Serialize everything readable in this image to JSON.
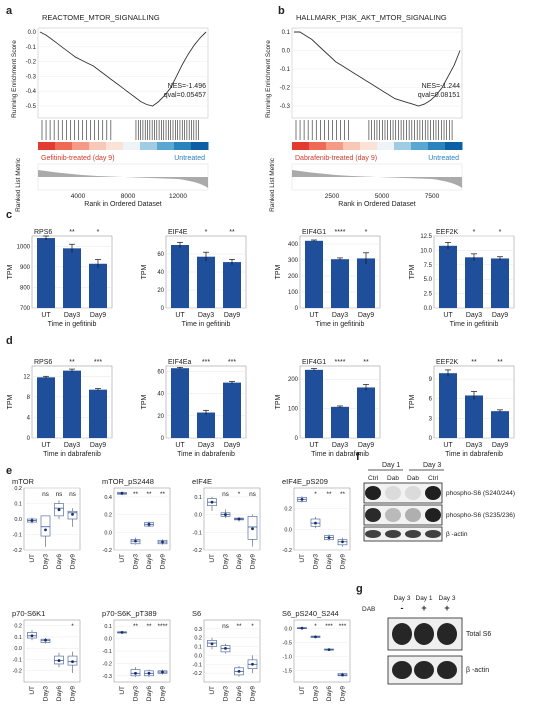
{
  "panel_letters": [
    "a",
    "b",
    "c",
    "d",
    "e",
    "f",
    "g"
  ],
  "gsea": [
    {
      "title": "REACTOME_MTOR_SIGNALLING",
      "ylabel": "Running Enrichment Score",
      "metric_label": "Ranked List Metric",
      "xlabel": "Rank in Ordered Dataset",
      "nes": "NES=-1.496",
      "qval": "qval=0.05457",
      "left_label": "Gefitinib-treated (day 9)",
      "right_label": "Untreated",
      "yticks": [
        "0.0",
        "-0.1",
        "-0.2",
        "-0.3",
        "-0.4",
        "-0.5"
      ],
      "xticks": [
        "4000",
        "8000",
        "12000"
      ],
      "curve": [
        0,
        -0.02,
        -0.05,
        -0.08,
        -0.11,
        -0.14,
        -0.17,
        -0.19,
        -0.21,
        -0.23,
        -0.26,
        -0.29,
        -0.32,
        -0.35,
        -0.38,
        -0.41,
        -0.44,
        -0.47,
        -0.49,
        -0.5,
        -0.47,
        -0.43,
        -0.38,
        -0.3,
        -0.22,
        -0.15,
        -0.09,
        -0.04,
        0.0
      ]
    },
    {
      "title": "HALLMARK_PI3K_AKT_MTOR_SIGNALING",
      "ylabel": "Running Enrichment Score",
      "metric_label": "Ranked List Metric",
      "xlabel": "Rank in Ordered Dataset",
      "nes": "NES=-1.244",
      "qval": "qval=0.08151",
      "left_label": "Dabrafenib-treated (day 9)",
      "right_label": "Untreated",
      "yticks": [
        "0.1",
        "0.0",
        "-0.1",
        "-0.2",
        "-0.3"
      ],
      "xticks": [
        "2500",
        "5000",
        "7500"
      ],
      "curve": [
        0.1,
        0.1,
        0.08,
        0.06,
        0.03,
        0.0,
        -0.03,
        -0.06,
        -0.08,
        -0.1,
        -0.12,
        -0.14,
        -0.16,
        -0.18,
        -0.2,
        -0.22,
        -0.24,
        -0.26,
        -0.27,
        -0.28,
        -0.29,
        -0.3,
        -0.29,
        -0.27,
        -0.24,
        -0.2,
        -0.14,
        -0.08,
        0.0
      ]
    }
  ],
  "chart_data": [
    {
      "type": "bar",
      "title": "RPS6",
      "ylabel": "TPM",
      "xlabel": "Time in gefitinib",
      "categories": [
        "UT",
        "Day3",
        "Day9"
      ],
      "values": [
        1040,
        990,
        915
      ],
      "errors": [
        10,
        20,
        20
      ],
      "sig": [
        "",
        "**",
        "*"
      ],
      "ylim": [
        700,
        1050
      ],
      "yticks": [
        "700",
        "800",
        "900",
        "1000"
      ]
    },
    {
      "type": "bar",
      "title": "EIF4E",
      "ylabel": "TPM",
      "xlabel": "Time in gefitinib",
      "categories": [
        "UT",
        "Day3",
        "Day9"
      ],
      "values": [
        70,
        57,
        51
      ],
      "errors": [
        3,
        5,
        3
      ],
      "sig": [
        "",
        "*",
        "**"
      ],
      "ylim": [
        0,
        80
      ],
      "yticks": [
        "0",
        "20",
        "40",
        "60"
      ]
    },
    {
      "type": "bar",
      "title": "EIF4G1",
      "ylabel": "TPM",
      "xlabel": "Time in gefitinib",
      "categories": [
        "UT",
        "Day3",
        "Day9"
      ],
      "values": [
        420,
        305,
        310
      ],
      "errors": [
        5,
        8,
        35
      ],
      "sig": [
        "",
        "****",
        "*"
      ],
      "ylim": [
        0,
        450
      ],
      "yticks": [
        "0",
        "100",
        "200",
        "300",
        "400"
      ]
    },
    {
      "type": "bar",
      "title": "EEF2K",
      "ylabel": "TPM",
      "xlabel": "Time in gefitinib",
      "categories": [
        "UT",
        "Day3",
        "Day9"
      ],
      "values": [
        10.8,
        8.8,
        8.6
      ],
      "errors": [
        0.6,
        0.6,
        0.3
      ],
      "sig": [
        "",
        "*",
        "*"
      ],
      "ylim": [
        0,
        12.5
      ],
      "yticks": [
        "0.0",
        "2.5",
        "5.0",
        "7.5",
        "10.0",
        "12.5"
      ]
    },
    {
      "type": "bar",
      "title": "RPS6",
      "ylabel": "TPM",
      "xlabel": "Time in dabrafenib",
      "categories": [
        "UT",
        "Day3",
        "Day9"
      ],
      "values": [
        11.8,
        13.1,
        9.4
      ],
      "errors": [
        0.2,
        0.3,
        0.2
      ],
      "sig": [
        "",
        "**",
        "***"
      ],
      "ylim": [
        0,
        14
      ],
      "yticks": [
        "0",
        "4",
        "8",
        "12"
      ]
    },
    {
      "type": "bar",
      "title": "EIF4Ea",
      "ylabel": "TPM",
      "xlabel": "Time in dabrafenib",
      "categories": [
        "UT",
        "Day3",
        "Day9"
      ],
      "values": [
        63,
        23,
        50
      ],
      "errors": [
        0.8,
        2,
        1
      ],
      "sig": [
        "",
        "***",
        "***"
      ],
      "ylim": [
        0,
        65
      ],
      "yticks": [
        "0",
        "20",
        "40",
        "60"
      ]
    },
    {
      "type": "bar",
      "title": "EIF4G1",
      "ylabel": "TPM",
      "xlabel": "Time in dabrafenib",
      "categories": [
        "UT",
        "Day3",
        "Day9"
      ],
      "values": [
        232,
        106,
        172
      ],
      "errors": [
        4,
        3,
        10
      ],
      "sig": [
        "",
        "****",
        "**"
      ],
      "ylim": [
        0,
        245
      ],
      "yticks": [
        "0",
        "100",
        "200"
      ]
    },
    {
      "type": "bar",
      "title": "EEF2K",
      "ylabel": "TPM",
      "xlabel": "Time in dabrafenib",
      "categories": [
        "UT",
        "Day3",
        "Day9"
      ],
      "values": [
        9.9,
        6.5,
        4.1
      ],
      "errors": [
        0.5,
        0.6,
        0.2
      ],
      "sig": [
        "",
        "**",
        "**"
      ],
      "ylim": [
        0,
        11
      ],
      "yticks": [
        "0",
        "3",
        "6",
        "9"
      ]
    },
    {
      "type": "box",
      "title": "mTOR",
      "categories": [
        "UT",
        "Day3",
        "Day6",
        "Day9"
      ],
      "ylim": [
        -0.2,
        0.2
      ],
      "yticks": [
        "-0.2",
        "-0.1",
        "0.0",
        "0.1",
        "0.2"
      ],
      "sig": [
        "",
        "ns",
        "ns",
        "ns"
      ],
      "boxes": [
        {
          "q1": -0.02,
          "med": -0.01,
          "q3": 0.0,
          "lo": -0.03,
          "hi": 0.01,
          "mean": -0.01
        },
        {
          "q1": -0.11,
          "med": -0.05,
          "q3": 0.02,
          "lo": -0.18,
          "hi": 0.02,
          "mean": -0.07
        },
        {
          "q1": 0.02,
          "med": 0.07,
          "q3": 0.1,
          "lo": 0.0,
          "hi": 0.12,
          "mean": 0.06
        },
        {
          "q1": 0.0,
          "med": 0.04,
          "q3": 0.05,
          "lo": -0.05,
          "hi": 0.07,
          "mean": 0.03
        }
      ]
    },
    {
      "type": "box",
      "title": "mTOR_pS2448",
      "categories": [
        "UT",
        "Day3",
        "Day6",
        "Day9"
      ],
      "ylim": [
        -0.2,
        0.5
      ],
      "yticks": [
        "-0.2",
        "0.0",
        "0.2",
        "0.4"
      ],
      "sig": [
        "",
        "**",
        "**",
        "**"
      ],
      "boxes": [
        {
          "q1": 0.43,
          "med": 0.44,
          "q3": 0.45,
          "lo": 0.42,
          "hi": 0.46,
          "mean": 0.44
        },
        {
          "q1": -0.13,
          "med": -0.1,
          "q3": -0.08,
          "lo": -0.14,
          "hi": -0.06,
          "mean": -0.1
        },
        {
          "q1": 0.07,
          "med": 0.09,
          "q3": 0.11,
          "lo": 0.06,
          "hi": 0.12,
          "mean": 0.09
        },
        {
          "q1": -0.13,
          "med": -0.11,
          "q3": -0.09,
          "lo": -0.14,
          "hi": -0.08,
          "mean": -0.11
        }
      ]
    },
    {
      "type": "box",
      "title": "eIF4E",
      "categories": [
        "UT",
        "Day3",
        "Day6",
        "Day9"
      ],
      "ylim": [
        -0.2,
        0.15
      ],
      "yticks": [
        "-0.2",
        "-0.1",
        "0.0",
        "0.1"
      ],
      "sig": [
        "",
        "ns",
        "*",
        "ns"
      ],
      "boxes": [
        {
          "q1": 0.05,
          "med": 0.07,
          "q3": 0.09,
          "lo": 0.02,
          "hi": 0.1,
          "mean": 0.07
        },
        {
          "q1": -0.01,
          "med": 0.0,
          "q3": 0.01,
          "lo": -0.02,
          "hi": 0.03,
          "mean": 0.0
        },
        {
          "q1": -0.03,
          "med": -0.025,
          "q3": -0.02,
          "lo": -0.04,
          "hi": -0.015,
          "mean": -0.025
        },
        {
          "q1": -0.14,
          "med": -0.07,
          "q3": -0.01,
          "lo": -0.18,
          "hi": 0.0,
          "mean": -0.08
        }
      ]
    },
    {
      "type": "box",
      "title": "eIF4E_pS209",
      "categories": [
        "UT",
        "Day3",
        "Day6",
        "Day9"
      ],
      "ylim": [
        -0.2,
        0.4
      ],
      "yticks": [
        "-0.2",
        "0.0",
        "0.2"
      ],
      "sig": [
        "",
        "*",
        "**",
        "**"
      ],
      "boxes": [
        {
          "q1": 0.27,
          "med": 0.29,
          "q3": 0.31,
          "lo": 0.26,
          "hi": 0.32,
          "mean": 0.29
        },
        {
          "q1": 0.03,
          "med": 0.06,
          "q3": 0.1,
          "lo": 0.01,
          "hi": 0.12,
          "mean": 0.06
        },
        {
          "q1": -0.1,
          "med": -0.08,
          "q3": -0.06,
          "lo": -0.11,
          "hi": -0.05,
          "mean": -0.08
        },
        {
          "q1": -0.15,
          "med": -0.12,
          "q3": -0.1,
          "lo": -0.17,
          "hi": -0.08,
          "mean": -0.12
        }
      ]
    },
    {
      "type": "box",
      "title": "p70-S6K1",
      "categories": [
        "UT",
        "Day3",
        "Day6",
        "Day9"
      ],
      "ylim": [
        -0.3,
        0.25
      ],
      "yticks": [
        "-0.2",
        "-0.1",
        "0.0",
        "0.1",
        "0.2"
      ],
      "sig": [
        "",
        "",
        "",
        "*"
      ],
      "boxes": [
        {
          "q1": 0.09,
          "med": 0.11,
          "q3": 0.14,
          "lo": 0.07,
          "hi": 0.16,
          "mean": 0.11
        },
        {
          "q1": 0.05,
          "med": 0.07,
          "q3": 0.08,
          "lo": 0.04,
          "hi": 0.09,
          "mean": 0.07
        },
        {
          "q1": -0.14,
          "med": -0.11,
          "q3": -0.07,
          "lo": -0.17,
          "hi": -0.04,
          "mean": -0.11
        },
        {
          "q1": -0.15,
          "med": -0.12,
          "q3": -0.07,
          "lo": -0.22,
          "hi": -0.03,
          "mean": -0.12
        }
      ]
    },
    {
      "type": "box",
      "title": "p70-S6K_pT389",
      "categories": [
        "UT",
        "Day3",
        "Day6",
        "Day9"
      ],
      "ylim": [
        -0.35,
        0.15
      ],
      "yticks": [
        "-0.3",
        "-0.2",
        "-0.1",
        "0.0",
        "0.1"
      ],
      "sig": [
        "",
        "**",
        "**",
        "****"
      ],
      "boxes": [
        {
          "q1": 0.045,
          "med": 0.05,
          "q3": 0.055,
          "lo": 0.04,
          "hi": 0.06,
          "mean": 0.05
        },
        {
          "q1": -0.3,
          "med": -0.28,
          "q3": -0.25,
          "lo": -0.31,
          "hi": -0.23,
          "mean": -0.28
        },
        {
          "q1": -0.3,
          "med": -0.28,
          "q3": -0.26,
          "lo": -0.31,
          "hi": -0.25,
          "mean": -0.28
        },
        {
          "q1": -0.28,
          "med": -0.27,
          "q3": -0.26,
          "lo": -0.29,
          "hi": -0.25,
          "mean": -0.27
        }
      ]
    },
    {
      "type": "box",
      "title": "S6",
      "categories": [
        "UT",
        "Day3",
        "Day6",
        "Day9"
      ],
      "ylim": [
        -0.3,
        0.4
      ],
      "yticks": [
        "-0.2",
        "-0.1",
        "0.0",
        "0.1",
        "0.2",
        "0.3"
      ],
      "sig": [
        "",
        "ns",
        "**",
        "*"
      ],
      "boxes": [
        {
          "q1": 0.1,
          "med": 0.14,
          "q3": 0.17,
          "lo": 0.07,
          "hi": 0.2,
          "mean": 0.13
        },
        {
          "q1": 0.04,
          "med": 0.08,
          "q3": 0.11,
          "lo": 0.02,
          "hi": 0.13,
          "mean": 0.08
        },
        {
          "q1": -0.22,
          "med": -0.18,
          "q3": -0.14,
          "lo": -0.24,
          "hi": -0.12,
          "mean": -0.18
        },
        {
          "q1": -0.15,
          "med": -0.1,
          "q3": -0.05,
          "lo": -0.2,
          "hi": 0.0,
          "mean": -0.1
        }
      ]
    },
    {
      "type": "box",
      "title": "S6_pS240_S244",
      "categories": [
        "UT",
        "Day3",
        "Day6",
        "Day9"
      ],
      "ylim": [
        -1.9,
        0.3
      ],
      "yticks": [
        "-1.5",
        "-1.0",
        "-0.5",
        "0.0"
      ],
      "sig": [
        "",
        "*",
        "***",
        "***"
      ],
      "boxes": [
        {
          "q1": 0.0,
          "med": 0.01,
          "q3": 0.03,
          "lo": -0.02,
          "hi": 0.04,
          "mean": 0.01
        },
        {
          "q1": -0.32,
          "med": -0.3,
          "q3": -0.27,
          "lo": -0.34,
          "hi": -0.25,
          "mean": -0.3
        },
        {
          "q1": -0.77,
          "med": -0.75,
          "q3": -0.73,
          "lo": -0.78,
          "hi": -0.72,
          "mean": -0.75
        },
        {
          "q1": -1.68,
          "med": -1.65,
          "q3": -1.6,
          "lo": -1.7,
          "hi": -1.57,
          "mean": -1.65
        }
      ]
    }
  ],
  "blot_f": {
    "day1": "Day 1",
    "day3": "Day 3",
    "lanes": [
      "Ctrl",
      "Dab",
      "Dab",
      "Ctrl"
    ],
    "rows": [
      "phospho-S6 (S240/244)",
      "phospho-S6 (S235/236)",
      "β -actin"
    ]
  },
  "blot_g": {
    "cols": [
      "Day 3",
      "Day 1",
      "Day 3"
    ],
    "dab_label": "DAB",
    "signs": [
      "-",
      "+",
      "+"
    ],
    "rows": [
      "Total S6",
      "β -actin"
    ]
  }
}
